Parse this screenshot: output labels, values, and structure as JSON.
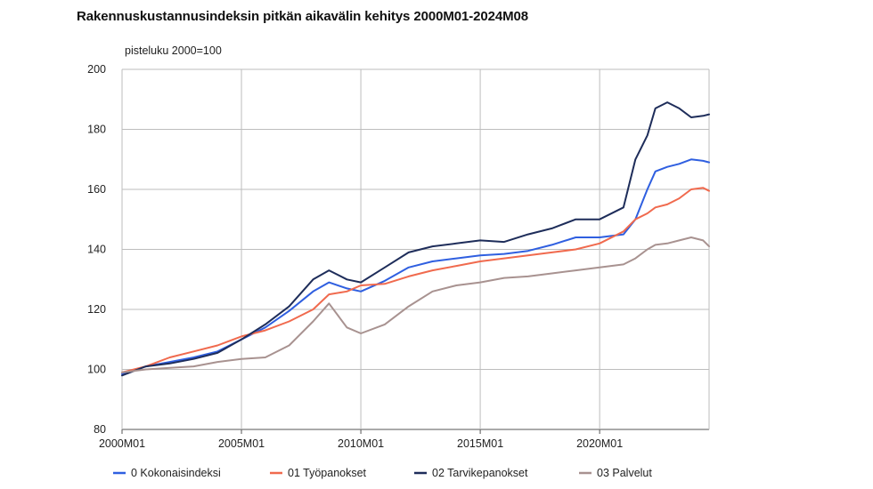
{
  "chart_data": {
    "type": "line",
    "title": "Rakennuskustannusindeksin pitkän aikavälin kehitys 2000M01-2024M08",
    "ylabel": "pisteluku 2000=100",
    "xlabel": "",
    "ylim": [
      80,
      200
    ],
    "yticks": [
      80,
      100,
      120,
      140,
      160,
      180,
      200
    ],
    "xlim": [
      "2000M01",
      "2024M08"
    ],
    "xticks": [
      "2000M01",
      "2005M01",
      "2010M01",
      "2015M01",
      "2020M01"
    ],
    "grid": true,
    "legend_position": "bottom",
    "x": [
      "2000M01",
      "2001M01",
      "2002M01",
      "2003M01",
      "2004M01",
      "2005M01",
      "2006M01",
      "2007M01",
      "2008M01",
      "2008M09",
      "2009M06",
      "2010M01",
      "2011M01",
      "2012M01",
      "2013M01",
      "2014M01",
      "2015M01",
      "2016M01",
      "2017M01",
      "2018M01",
      "2019M01",
      "2020M01",
      "2021M01",
      "2021M07",
      "2022M01",
      "2022M05",
      "2022M11",
      "2023M05",
      "2023M11",
      "2024M05",
      "2024M08"
    ],
    "series": [
      {
        "name": "0 Kokonaisindeksi",
        "color": "#2f5fe0",
        "values": [
          98.5,
          101,
          102.5,
          104,
          106,
          110,
          114,
          119.5,
          126,
          129,
          127,
          126,
          129.5,
          134,
          136,
          137,
          138,
          138.5,
          139.5,
          141.5,
          144,
          144,
          145,
          150,
          160,
          166,
          167.5,
          168.5,
          170,
          169.5,
          169
        ]
      },
      {
        "name": "01 Työpanokset",
        "color": "#f06a4e",
        "values": [
          99,
          101,
          104,
          106,
          108,
          111,
          113,
          116,
          120,
          125,
          126,
          128,
          128.5,
          131,
          133,
          134.5,
          136,
          137,
          138,
          139,
          140,
          142,
          146,
          150,
          152,
          154,
          155,
          157,
          160,
          160.5,
          159.5
        ]
      },
      {
        "name": "02 Tarvikepanokset",
        "color": "#1e2d5a",
        "values": [
          98,
          101,
          102,
          103.5,
          105.5,
          110,
          115,
          121,
          130,
          133,
          130,
          129,
          134,
          139,
          141,
          142,
          143,
          142.5,
          145,
          147,
          150,
          150,
          154,
          170,
          178,
          187,
          189,
          187,
          184,
          184.5,
          185
        ]
      },
      {
        "name": "03 Palvelut",
        "color": "#a89290",
        "values": [
          99,
          100,
          100.5,
          101,
          102.5,
          103.5,
          104,
          108,
          116,
          122,
          114,
          112,
          115,
          121,
          126,
          128,
          129,
          130.5,
          131,
          132,
          133,
          134,
          135,
          137,
          140,
          141.5,
          142,
          143,
          144,
          143,
          141
        ]
      }
    ]
  },
  "legend": [
    {
      "label": "0 Kokonaisindeksi",
      "color": "#2f5fe0"
    },
    {
      "label": "01 Työpanokset",
      "color": "#f06a4e"
    },
    {
      "label": "02 Tarvikepanokset",
      "color": "#1e2d5a"
    },
    {
      "label": "03 Palvelut",
      "color": "#a89290"
    }
  ]
}
